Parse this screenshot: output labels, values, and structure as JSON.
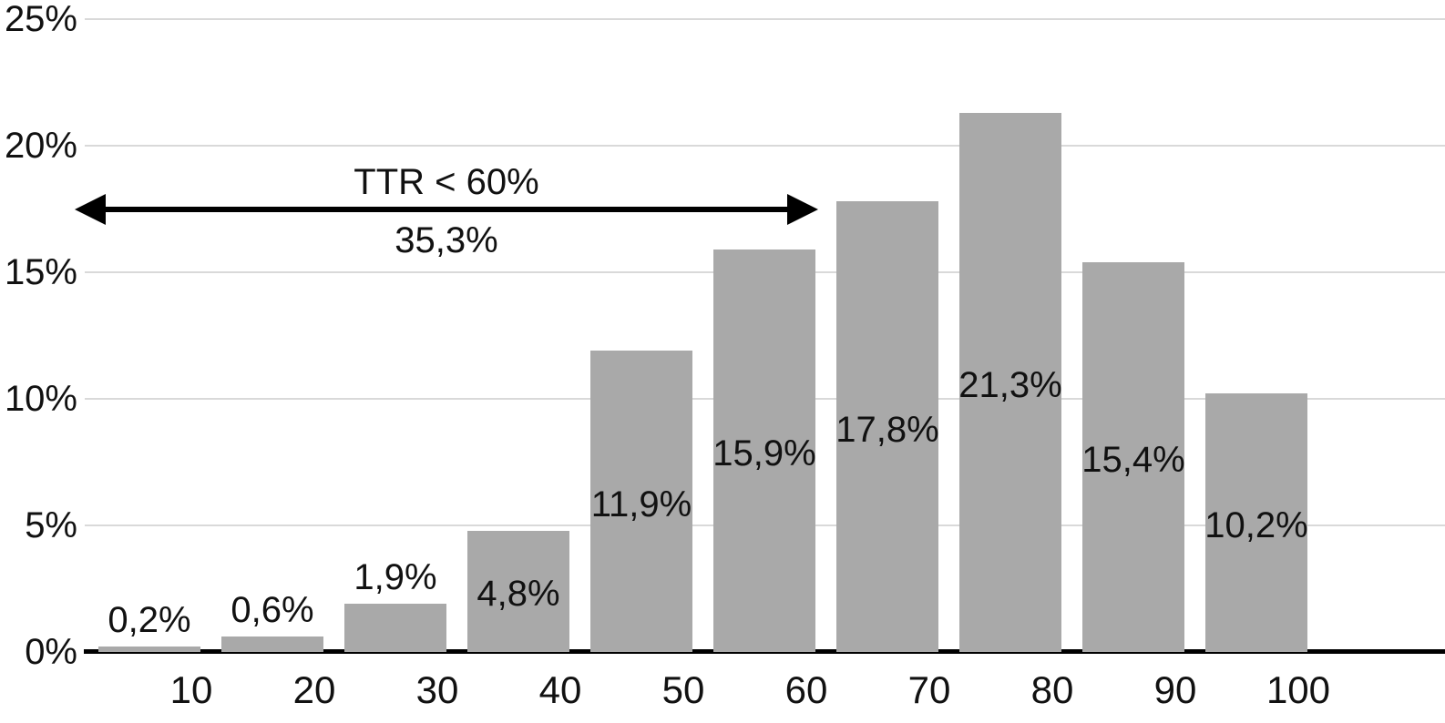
{
  "chart_data": {
    "type": "bar",
    "title": "",
    "xlabel": "",
    "ylabel": "",
    "categories": [
      "10",
      "20",
      "30",
      "40",
      "50",
      "60",
      "70",
      "80",
      "90",
      "100"
    ],
    "values": [
      0.2,
      0.6,
      1.9,
      4.8,
      11.9,
      15.9,
      17.8,
      21.3,
      15.4,
      10.2
    ],
    "value_labels": [
      "0,2%",
      "0,6%",
      "1,9%",
      "4,8%",
      "11,9%",
      "15,9%",
      "17,8%",
      "21,3%",
      "15,4%",
      "10,2%"
    ],
    "ylim": [
      0,
      25
    ],
    "yticks": [
      0,
      5,
      10,
      15,
      20,
      25
    ],
    "ytick_labels": [
      "0%",
      "5%",
      "10%",
      "15%",
      "20%",
      "25%"
    ],
    "grid": "horizontal",
    "legend": "none",
    "annotation": {
      "label": "TTR < 60%",
      "value": "35,3%",
      "arrow": "double-headed horizontal arrow spanning bins 10 through 60"
    }
  },
  "colors": {
    "bar": "#a9a9a9",
    "gridline": "#d9d9d9",
    "axis": "#000000",
    "text": "#111111"
  }
}
